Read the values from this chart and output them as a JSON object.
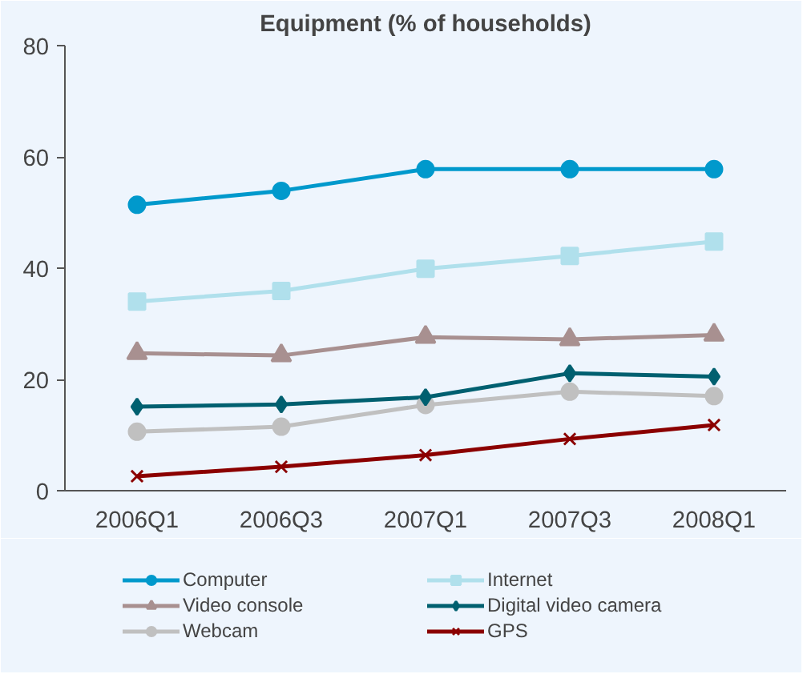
{
  "chart_data": {
    "type": "line",
    "title": "Equipment (% of households)",
    "categories": [
      "2006Q1",
      "2006Q3",
      "2007Q1",
      "2007Q3",
      "2008Q1"
    ],
    "series": [
      {
        "name": "Computer",
        "color": "#0099cc",
        "marker": "circle",
        "values": [
          51.4,
          53.9,
          57.8,
          57.8,
          57.8
        ]
      },
      {
        "name": "Internet",
        "color": "#b0e0ec",
        "marker": "square",
        "values": [
          34.0,
          35.9,
          39.9,
          42.2,
          44.8
        ]
      },
      {
        "name": "Video console",
        "color": "#a89090",
        "marker": "triangle",
        "values": [
          24.7,
          24.3,
          27.6,
          27.2,
          28.0
        ]
      },
      {
        "name": "Digital video camera",
        "color": "#006070",
        "marker": "diamond",
        "values": [
          15.1,
          15.5,
          16.8,
          21.1,
          20.5
        ]
      },
      {
        "name": "Webcam",
        "color": "#c0c0c0",
        "marker": "circle",
        "values": [
          10.6,
          11.5,
          15.4,
          17.8,
          17.0
        ]
      },
      {
        "name": "GPS",
        "color": "#8b0000",
        "marker": "cross",
        "values": [
          2.6,
          4.3,
          6.4,
          9.3,
          11.8
        ]
      }
    ],
    "ylim": [
      0,
      80
    ],
    "yticks": [
      0,
      20,
      40,
      60,
      80
    ],
    "grid": false,
    "legend": "bottom"
  }
}
